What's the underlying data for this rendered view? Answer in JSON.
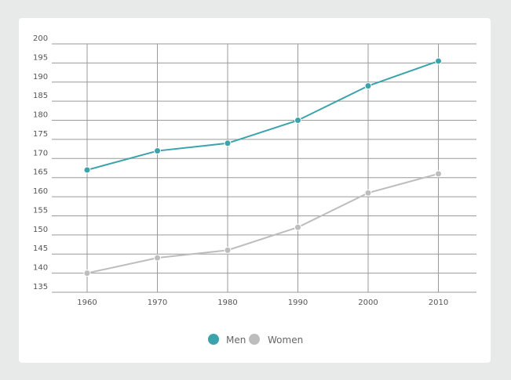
{
  "chart_data": {
    "type": "line",
    "x": [
      1960,
      1970,
      1980,
      1990,
      2000,
      2010
    ],
    "xlabel": "",
    "ylabel": "",
    "ylim": [
      135,
      200
    ],
    "yticks": [
      135,
      140,
      145,
      150,
      155,
      160,
      165,
      170,
      175,
      180,
      185,
      190,
      195,
      200
    ],
    "grid": true,
    "legend_position": "bottom-center",
    "series": [
      {
        "name": "Men",
        "color": "#3aa3ab",
        "values": [
          167,
          172,
          174,
          180,
          189,
          195.5
        ]
      },
      {
        "name": "Women",
        "color": "#bdbdbd",
        "values": [
          140,
          144,
          146,
          152,
          161,
          166
        ]
      }
    ]
  }
}
